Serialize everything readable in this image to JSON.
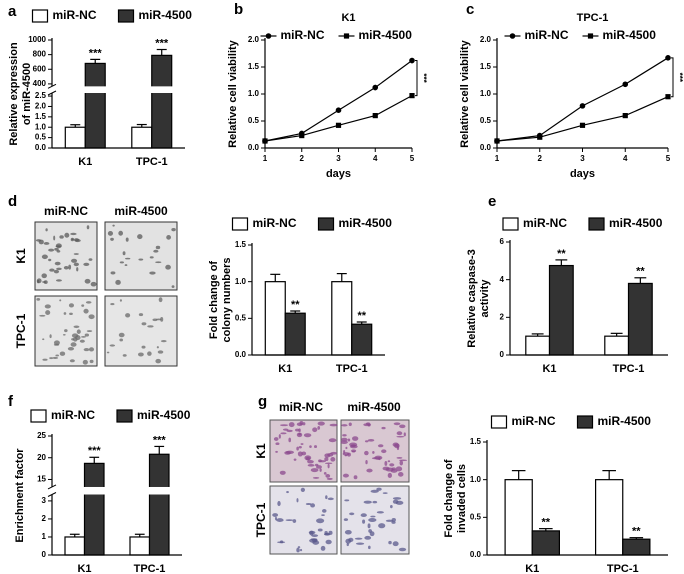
{
  "chart_data": [
    {
      "type": "bar",
      "panel": "a",
      "ylabel": [
        "Relative expression",
        "of miR-4500"
      ],
      "categories": [
        "K1",
        "TPC-1"
      ],
      "series": [
        {
          "name": "miR-NC",
          "color": "#ffffff",
          "values": [
            1.0,
            1.0
          ],
          "errors": [
            0.12,
            0.13
          ]
        },
        {
          "name": "miR-4500",
          "color": "#333333",
          "values": [
            680,
            790
          ],
          "errors": [
            55,
            80
          ],
          "annotations": [
            "***",
            "***"
          ]
        }
      ],
      "ylim": [
        0,
        1000
      ],
      "axis_break": [
        2.6,
        380
      ],
      "yticks": [
        {
          "value": 0,
          "label": "0.0"
        },
        {
          "value": 0.5,
          "label": "0.5"
        },
        {
          "value": 1,
          "label": "1.0"
        },
        {
          "value": 1.5,
          "label": "1.5"
        },
        {
          "value": 2,
          "label": "2.0"
        },
        {
          "value": 2.5,
          "label": "2.5"
        },
        400,
        600,
        800,
        1000
      ]
    },
    {
      "type": "line",
      "panel": "b",
      "title": "K1",
      "xlabel": "days",
      "ylabel": [
        "Relative cell viability"
      ],
      "annotation": "***",
      "x": [
        1,
        2,
        3,
        4,
        5
      ],
      "series": [
        {
          "name": "miR-NC",
          "color": "#000000",
          "marker": "circle",
          "values": [
            0.13,
            0.27,
            0.7,
            1.12,
            1.62
          ],
          "errors": [
            0.01,
            0.02,
            0.03,
            0.05,
            0.05
          ]
        },
        {
          "name": "miR-4500",
          "color": "#000000",
          "marker": "square",
          "values": [
            0.13,
            0.23,
            0.42,
            0.6,
            0.97
          ],
          "errors": [
            0.01,
            0.02,
            0.02,
            0.03,
            0.04
          ]
        }
      ],
      "xlim": [
        1,
        5
      ],
      "xticks": [
        1,
        2,
        3,
        4,
        5
      ],
      "ylim": [
        0,
        2
      ],
      "yticks": [
        {
          "value": 0,
          "label": "0.0"
        },
        {
          "value": 0.5,
          "label": "0.5"
        },
        {
          "value": 1,
          "label": "1.0"
        },
        {
          "value": 1.5,
          "label": "1.5"
        },
        {
          "value": 2,
          "label": "2.0"
        }
      ]
    },
    {
      "type": "line",
      "panel": "c",
      "title": "TPC-1",
      "xlabel": "days",
      "ylabel": [
        "Relative cell viability"
      ],
      "annotation": "***",
      "x": [
        1,
        2,
        3,
        4,
        5
      ],
      "series": [
        {
          "name": "miR-NC",
          "color": "#000000",
          "marker": "circle",
          "values": [
            0.13,
            0.23,
            0.78,
            1.18,
            1.67
          ],
          "errors": [
            0.01,
            0.02,
            0.03,
            0.05,
            0.05
          ]
        },
        {
          "name": "miR-4500",
          "color": "#000000",
          "marker": "square",
          "values": [
            0.13,
            0.2,
            0.42,
            0.6,
            0.95
          ],
          "errors": [
            0.01,
            0.02,
            0.02,
            0.03,
            0.03
          ]
        }
      ],
      "xlim": [
        1,
        5
      ],
      "xticks": [
        1,
        2,
        3,
        4,
        5
      ],
      "ylim": [
        0,
        2
      ],
      "yticks": [
        {
          "value": 0,
          "label": "0.0"
        },
        {
          "value": 0.5,
          "label": "0.5"
        },
        {
          "value": 1,
          "label": "1.0"
        },
        {
          "value": 1.5,
          "label": "1.5"
        },
        {
          "value": 2,
          "label": "2.0"
        }
      ]
    },
    {
      "type": "bar",
      "panel": "d",
      "ylabel": [
        "Fold change of",
        "colony numbers"
      ],
      "categories": [
        "K1",
        "TPC-1"
      ],
      "series": [
        {
          "name": "miR-NC",
          "color": "#ffffff",
          "values": [
            1.0,
            1.0
          ],
          "errors": [
            0.1,
            0.11
          ]
        },
        {
          "name": "miR-4500",
          "color": "#333333",
          "values": [
            0.57,
            0.42
          ],
          "errors": [
            0.03,
            0.03
          ],
          "annotations": [
            "**",
            "**"
          ]
        }
      ],
      "ylim": [
        0,
        1.5
      ],
      "yticks": [
        {
          "value": 0,
          "label": "0.0"
        },
        {
          "value": 0.5,
          "label": "0.5"
        },
        {
          "value": 1,
          "label": "1.0"
        },
        {
          "value": 1.5,
          "label": "1.5"
        }
      ]
    },
    {
      "type": "bar",
      "panel": "e",
      "ylabel": [
        "Relative caspase-3",
        "activity"
      ],
      "categories": [
        "K1",
        "TPC-1"
      ],
      "series": [
        {
          "name": "miR-NC",
          "color": "#ffffff",
          "values": [
            1.0,
            1.0
          ],
          "errors": [
            0.12,
            0.15
          ]
        },
        {
          "name": "miR-4500",
          "color": "#333333",
          "values": [
            4.75,
            3.8
          ],
          "errors": [
            0.3,
            0.3
          ],
          "annotations": [
            "**",
            "**"
          ]
        }
      ],
      "ylim": [
        0,
        6
      ],
      "yticks": [
        0,
        2,
        4,
        6
      ]
    },
    {
      "type": "bar",
      "panel": "f",
      "ylabel": [
        "Enrichment factor"
      ],
      "categories": [
        "K1",
        "TPC-1"
      ],
      "series": [
        {
          "name": "miR-NC",
          "color": "#ffffff",
          "values": [
            1.0,
            1.0
          ],
          "errors": [
            0.15,
            0.15
          ]
        },
        {
          "name": "miR-4500",
          "color": "#333333",
          "values": [
            18.7,
            20.8
          ],
          "errors": [
            1.4,
            1.8
          ],
          "annotations": [
            "***",
            "***"
          ]
        }
      ],
      "ylim": [
        0,
        25
      ],
      "axis_break": [
        3.3,
        13.5
      ],
      "yticks": [
        0,
        1,
        2,
        3,
        15,
        20,
        25
      ]
    },
    {
      "type": "bar",
      "panel": "g",
      "ylabel": [
        "Fold change of",
        "invaded cells"
      ],
      "categories": [
        "K1",
        "TPC-1"
      ],
      "series": [
        {
          "name": "miR-NC",
          "color": "#ffffff",
          "values": [
            1.0,
            1.0
          ],
          "errors": [
            0.12,
            0.12
          ]
        },
        {
          "name": "miR-4500",
          "color": "#333333",
          "values": [
            0.32,
            0.21
          ],
          "errors": [
            0.03,
            0.02
          ],
          "annotations": [
            "**",
            "**"
          ]
        }
      ],
      "ylim": [
        0,
        1.5
      ],
      "yticks": [
        {
          "value": 0,
          "label": "0.0"
        },
        {
          "value": 0.5,
          "label": "0.5"
        },
        {
          "value": 1,
          "label": "1.0"
        },
        {
          "value": 1.5,
          "label": "1.5"
        }
      ]
    }
  ],
  "image_panels": [
    {
      "columns": [
        "miR-NC",
        "miR-4500"
      ],
      "rows": [
        "K1",
        "TPC-1"
      ]
    },
    {
      "columns": [
        "miR-NC",
        "miR-4500"
      ],
      "rows": [
        "K1",
        "TPC-1"
      ]
    }
  ]
}
